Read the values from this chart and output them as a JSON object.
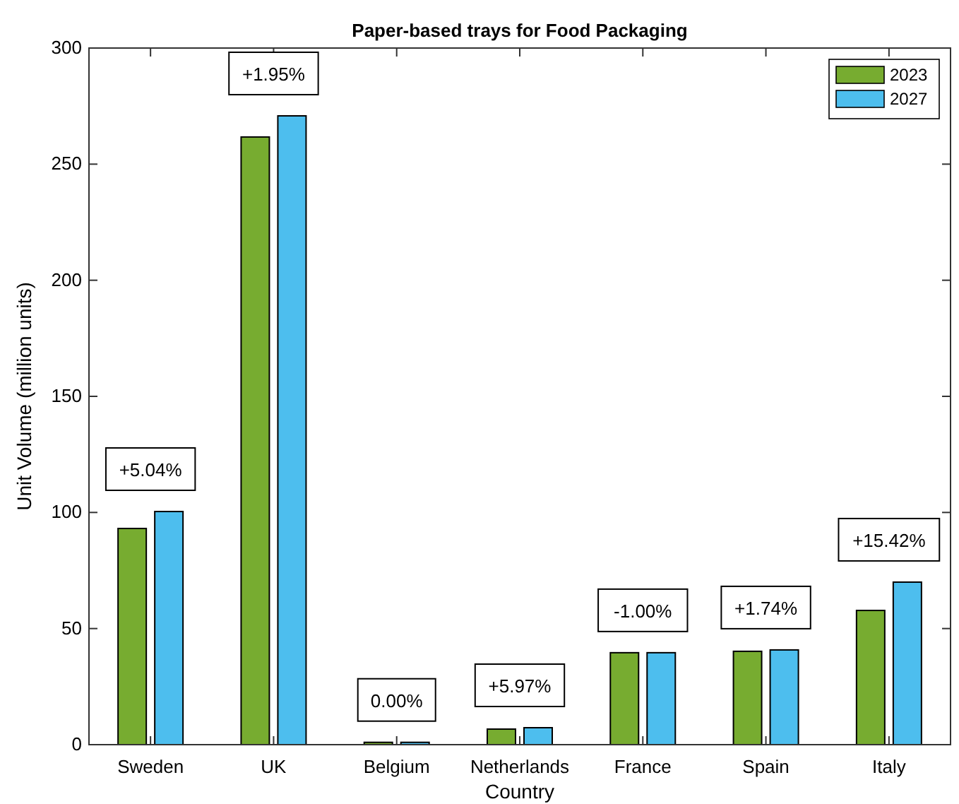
{
  "chart_data": {
    "type": "bar",
    "title": "Paper-based trays for Food Packaging",
    "xlabel": "Country",
    "ylabel": "Unit Volume (million units)",
    "categories": [
      "Sweden",
      "UK",
      "Belgium",
      "Netherlands",
      "France",
      "Spain",
      "Italy"
    ],
    "series": [
      {
        "name": "2023",
        "color": "#77ac30",
        "values": [
          93.1,
          261.7,
          1,
          6.7,
          39.6,
          40.2,
          57.8
        ]
      },
      {
        "name": "2027",
        "color": "#4dbeee",
        "values": [
          100.4,
          270.8,
          1,
          7.3,
          39.6,
          40.8,
          70
        ]
      }
    ],
    "ylim": [
      0,
      300
    ],
    "yticks": [
      0,
      50,
      100,
      150,
      200,
      250,
      300
    ],
    "grid": false,
    "legend": "top right",
    "annotations": [
      "+5.04%",
      "+1.95%",
      "0.00%",
      "+5.97%",
      "-1.00%",
      "+1.74%",
      "+15.42%"
    ]
  }
}
